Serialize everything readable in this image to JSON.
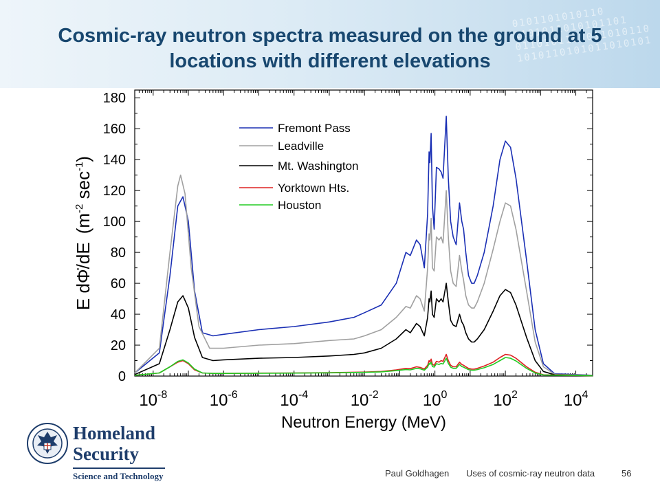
{
  "slide": {
    "title": "Cosmic-ray neutron spectra measured on the ground at 5 locations with different elevations",
    "footer_author": "Paul Goldhagen",
    "footer_title": "Uses of cosmic-ray neutron data",
    "page_number": "56"
  },
  "logo": {
    "name_line1": "Homeland",
    "name_line2": "Security",
    "tagline": "Science and Technology",
    "seal_icon": "dhs-seal-icon"
  },
  "chart_data": {
    "type": "line",
    "title": "",
    "xlabel": "Neutron Energy  (MeV)",
    "ylabel_main": "E d",
    "ylabel_symbol": "Φ̇",
    "ylabel_tail": "/dE",
    "ylabel_unit_open": "(m",
    "ylabel_unit_exp1": "-2",
    "ylabel_unit_mid": " sec",
    "ylabel_unit_exp2": "-1",
    "ylabel_unit_close": ")",
    "xscale": "log",
    "xlim": [
      3e-09,
      30000
    ],
    "ylim": [
      0,
      185
    ],
    "x_ticks": [
      {
        "base": "10",
        "exp": "-8"
      },
      {
        "base": "10",
        "exp": "-6"
      },
      {
        "base": "10",
        "exp": "-4"
      },
      {
        "base": "10",
        "exp": "-2"
      },
      {
        "base": "10",
        "exp": "0"
      },
      {
        "base": "10",
        "exp": "2"
      },
      {
        "base": "10",
        "exp": "4"
      }
    ],
    "y_ticks": [
      "0",
      "20",
      "40",
      "60",
      "80",
      "100",
      "120",
      "140",
      "160",
      "180"
    ],
    "legend_position": "top-center",
    "series": [
      {
        "name": "Fremont Pass",
        "color": "#1a2fb4",
        "points": [
          [
            3e-09,
            2
          ],
          [
            1.5e-08,
            15
          ],
          [
            3e-08,
            65
          ],
          [
            5e-08,
            110
          ],
          [
            7e-08,
            116
          ],
          [
            1e-07,
            100
          ],
          [
            1.5e-07,
            55
          ],
          [
            2.5e-07,
            28
          ],
          [
            5e-07,
            26
          ],
          [
            1e-06,
            27
          ],
          [
            1e-05,
            30
          ],
          [
            0.0001,
            32
          ],
          [
            0.001,
            35
          ],
          [
            0.005,
            38
          ],
          [
            0.01,
            41
          ],
          [
            0.03,
            46
          ],
          [
            0.08,
            60
          ],
          [
            0.15,
            80
          ],
          [
            0.2,
            78
          ],
          [
            0.3,
            88
          ],
          [
            0.38,
            85
          ],
          [
            0.5,
            70
          ],
          [
            0.62,
            105
          ],
          [
            0.68,
            145
          ],
          [
            0.72,
            138
          ],
          [
            0.78,
            157
          ],
          [
            0.85,
            110
          ],
          [
            0.95,
            95
          ],
          [
            1.1,
            135
          ],
          [
            1.3,
            134
          ],
          [
            1.5,
            132
          ],
          [
            1.7,
            128
          ],
          [
            2.1,
            168
          ],
          [
            2.4,
            128
          ],
          [
            2.8,
            100
          ],
          [
            3.3,
            90
          ],
          [
            4,
            85
          ],
          [
            5,
            112
          ],
          [
            5.8,
            100
          ],
          [
            6.5,
            95
          ],
          [
            7.5,
            80
          ],
          [
            9,
            65
          ],
          [
            11,
            60
          ],
          [
            13,
            60
          ],
          [
            16,
            65
          ],
          [
            25,
            80
          ],
          [
            45,
            110
          ],
          [
            70,
            140
          ],
          [
            100,
            152
          ],
          [
            140,
            148
          ],
          [
            200,
            128
          ],
          [
            400,
            75
          ],
          [
            700,
            30
          ],
          [
            1200,
            8
          ],
          [
            2500,
            1.5
          ],
          [
            30000,
            0.5
          ]
        ]
      },
      {
        "name": "Leadville",
        "color": "#a0a0a0",
        "points": [
          [
            3e-09,
            2
          ],
          [
            1.5e-08,
            18
          ],
          [
            3e-08,
            80
          ],
          [
            5e-08,
            123
          ],
          [
            6e-08,
            130
          ],
          [
            8e-08,
            118
          ],
          [
            1.2e-07,
            70
          ],
          [
            2e-07,
            32
          ],
          [
            4e-07,
            18
          ],
          [
            1e-06,
            18
          ],
          [
            1e-05,
            20
          ],
          [
            0.0001,
            21
          ],
          [
            0.001,
            23
          ],
          [
            0.005,
            24
          ],
          [
            0.01,
            26
          ],
          [
            0.03,
            30
          ],
          [
            0.08,
            38
          ],
          [
            0.15,
            45
          ],
          [
            0.2,
            44
          ],
          [
            0.3,
            52
          ],
          [
            0.38,
            50
          ],
          [
            0.5,
            42
          ],
          [
            0.62,
            70
          ],
          [
            0.68,
            92
          ],
          [
            0.72,
            88
          ],
          [
            0.78,
            102
          ],
          [
            0.85,
            70
          ],
          [
            0.95,
            68
          ],
          [
            1.1,
            90
          ],
          [
            1.3,
            88
          ],
          [
            1.5,
            90
          ],
          [
            1.7,
            86
          ],
          [
            2.1,
            120
          ],
          [
            2.4,
            90
          ],
          [
            2.8,
            68
          ],
          [
            3.3,
            60
          ],
          [
            4,
            58
          ],
          [
            5,
            78
          ],
          [
            5.8,
            68
          ],
          [
            6.5,
            62
          ],
          [
            7.5,
            52
          ],
          [
            9,
            46
          ],
          [
            11,
            44
          ],
          [
            13,
            44
          ],
          [
            16,
            48
          ],
          [
            25,
            60
          ],
          [
            45,
            82
          ],
          [
            70,
            100
          ],
          [
            100,
            112
          ],
          [
            140,
            110
          ],
          [
            200,
            95
          ],
          [
            400,
            55
          ],
          [
            700,
            22
          ],
          [
            1200,
            6
          ],
          [
            2500,
            1.2
          ],
          [
            30000,
            0.4
          ]
        ]
      },
      {
        "name": "Mt. Washington",
        "color": "#000000",
        "points": [
          [
            3e-09,
            1
          ],
          [
            1.5e-08,
            8
          ],
          [
            3e-08,
            30
          ],
          [
            5e-08,
            48
          ],
          [
            7e-08,
            52
          ],
          [
            1e-07,
            44
          ],
          [
            1.5e-07,
            25
          ],
          [
            2.5e-07,
            12
          ],
          [
            5e-07,
            10
          ],
          [
            1e-06,
            10.5
          ],
          [
            1e-05,
            11.5
          ],
          [
            0.0001,
            12
          ],
          [
            0.001,
            13
          ],
          [
            0.005,
            14
          ],
          [
            0.01,
            15
          ],
          [
            0.03,
            18
          ],
          [
            0.08,
            24
          ],
          [
            0.15,
            30
          ],
          [
            0.2,
            28
          ],
          [
            0.3,
            34
          ],
          [
            0.38,
            32
          ],
          [
            0.5,
            26
          ],
          [
            0.62,
            38
          ],
          [
            0.68,
            50
          ],
          [
            0.72,
            48
          ],
          [
            0.78,
            55
          ],
          [
            0.85,
            40
          ],
          [
            0.95,
            38
          ],
          [
            1.1,
            50
          ],
          [
            1.3,
            48
          ],
          [
            1.5,
            50
          ],
          [
            1.7,
            48
          ],
          [
            2.1,
            60
          ],
          [
            2.4,
            48
          ],
          [
            2.8,
            36
          ],
          [
            3.3,
            33
          ],
          [
            4,
            32
          ],
          [
            5,
            40
          ],
          [
            5.8,
            35
          ],
          [
            6.5,
            33
          ],
          [
            7.5,
            28
          ],
          [
            9,
            24
          ],
          [
            11,
            22
          ],
          [
            13,
            22
          ],
          [
            16,
            24
          ],
          [
            25,
            30
          ],
          [
            45,
            42
          ],
          [
            70,
            52
          ],
          [
            100,
            56
          ],
          [
            140,
            54
          ],
          [
            200,
            46
          ],
          [
            400,
            25
          ],
          [
            700,
            10
          ],
          [
            1200,
            3
          ],
          [
            2500,
            0.8
          ],
          [
            30000,
            0.3
          ]
        ]
      },
      {
        "name": "Yorktown Hts.",
        "color": "#dd2222",
        "points": [
          [
            3e-09,
            0.5
          ],
          [
            1.5e-08,
            2
          ],
          [
            3e-08,
            6
          ],
          [
            5e-08,
            9
          ],
          [
            7e-08,
            10
          ],
          [
            1e-07,
            8
          ],
          [
            1.5e-07,
            4
          ],
          [
            2.5e-07,
            2
          ],
          [
            5e-07,
            1.8
          ],
          [
            1e-06,
            1.8
          ],
          [
            0.0001,
            2
          ],
          [
            0.001,
            2.2
          ],
          [
            0.01,
            2.6
          ],
          [
            0.03,
            3
          ],
          [
            0.08,
            4
          ],
          [
            0.15,
            5
          ],
          [
            0.2,
            4.8
          ],
          [
            0.3,
            6
          ],
          [
            0.38,
            5.6
          ],
          [
            0.5,
            4.6
          ],
          [
            0.62,
            7
          ],
          [
            0.68,
            10
          ],
          [
            0.72,
            9
          ],
          [
            0.78,
            11
          ],
          [
            0.85,
            7.5
          ],
          [
            0.95,
            7
          ],
          [
            1.1,
            9.5
          ],
          [
            1.3,
            9
          ],
          [
            1.5,
            10
          ],
          [
            1.7,
            9.5
          ],
          [
            2.1,
            14
          ],
          [
            2.4,
            10
          ],
          [
            2.8,
            7
          ],
          [
            3.3,
            6
          ],
          [
            4,
            6
          ],
          [
            5,
            9
          ],
          [
            5.8,
            7.5
          ],
          [
            6.5,
            7
          ],
          [
            7.5,
            6
          ],
          [
            9,
            5
          ],
          [
            11,
            4.5
          ],
          [
            13,
            4.5
          ],
          [
            16,
            5
          ],
          [
            25,
            6.5
          ],
          [
            45,
            9
          ],
          [
            70,
            12
          ],
          [
            100,
            14
          ],
          [
            140,
            13.5
          ],
          [
            200,
            11.5
          ],
          [
            400,
            6
          ],
          [
            700,
            2.5
          ],
          [
            1200,
            0.8
          ],
          [
            30000,
            0.2
          ]
        ]
      },
      {
        "name": "Houston",
        "color": "#22cc22",
        "points": [
          [
            3e-09,
            0.5
          ],
          [
            1.5e-08,
            2
          ],
          [
            3e-08,
            6
          ],
          [
            5e-08,
            9.5
          ],
          [
            7e-08,
            10.5
          ],
          [
            1e-07,
            8.5
          ],
          [
            1.5e-07,
            4.5
          ],
          [
            2.5e-07,
            2
          ],
          [
            5e-07,
            1.7
          ],
          [
            1e-06,
            1.7
          ],
          [
            0.0001,
            1.9
          ],
          [
            0.001,
            2.1
          ],
          [
            0.01,
            2.4
          ],
          [
            0.03,
            2.7
          ],
          [
            0.08,
            3.5
          ],
          [
            0.15,
            4.2
          ],
          [
            0.2,
            4
          ],
          [
            0.3,
            5
          ],
          [
            0.38,
            4.7
          ],
          [
            0.5,
            3.8
          ],
          [
            0.62,
            5.8
          ],
          [
            0.68,
            8.2
          ],
          [
            0.72,
            7.5
          ],
          [
            0.78,
            9
          ],
          [
            0.85,
            6.2
          ],
          [
            0.95,
            5.8
          ],
          [
            1.1,
            8
          ],
          [
            1.3,
            7.5
          ],
          [
            1.5,
            8.2
          ],
          [
            1.7,
            7.8
          ],
          [
            2.1,
            11.5
          ],
          [
            2.4,
            8.2
          ],
          [
            2.8,
            5.8
          ],
          [
            3.3,
            5
          ],
          [
            4,
            5
          ],
          [
            5,
            7.5
          ],
          [
            5.8,
            6.2
          ],
          [
            6.5,
            5.8
          ],
          [
            7.5,
            5
          ],
          [
            9,
            4.2
          ],
          [
            11,
            3.8
          ],
          [
            13,
            3.8
          ],
          [
            16,
            4.2
          ],
          [
            25,
            5.4
          ],
          [
            45,
            7.5
          ],
          [
            70,
            10
          ],
          [
            100,
            12
          ],
          [
            140,
            11.5
          ],
          [
            200,
            9.8
          ],
          [
            400,
            5
          ],
          [
            700,
            2
          ],
          [
            1200,
            0.7
          ],
          [
            30000,
            0.2
          ]
        ]
      }
    ]
  }
}
